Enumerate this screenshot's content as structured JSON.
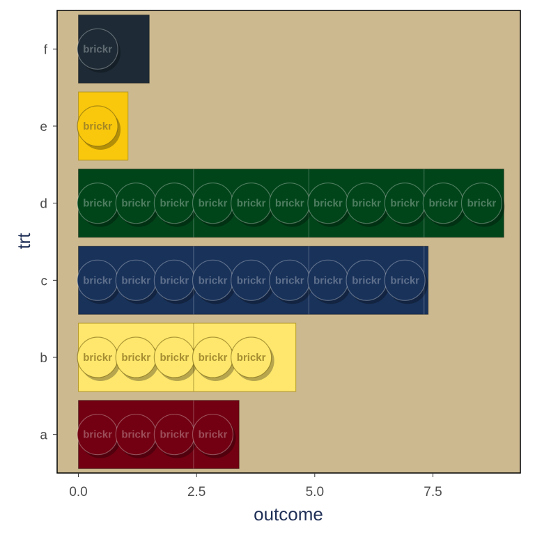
{
  "chart_data": {
    "type": "bar",
    "orientation": "horizontal",
    "style": "brick",
    "xlabel": "outcome",
    "ylabel": "trt",
    "xlim": [
      -0.45,
      9.35
    ],
    "xticks": [
      0.0,
      2.5,
      5.0,
      7.5
    ],
    "xtick_labels": [
      "0.0",
      "2.5",
      "5.0",
      "7.5"
    ],
    "categories": [
      "a",
      "b",
      "c",
      "d",
      "e",
      "f"
    ],
    "values": [
      3.4,
      4.6,
      7.4,
      9.0,
      1.05,
      1.5
    ],
    "colors": [
      "#720012",
      "#FEE76C",
      "#19325A",
      "#00451A",
      "#F9C70C",
      "#1E2B36"
    ],
    "stud_label": "brickr",
    "background": "#CCB98F",
    "grid": false,
    "legend": "none"
  }
}
